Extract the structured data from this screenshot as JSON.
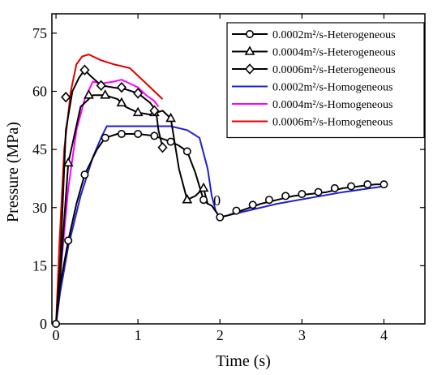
{
  "chart_data": {
    "type": "line",
    "title": "",
    "xlabel": "Time (s)",
    "ylabel": "Pressure (MPa)",
    "xlim": [
      -0.05,
      4.5
    ],
    "ylim": [
      0,
      80
    ],
    "xticks": [
      0,
      1,
      2,
      3,
      4
    ],
    "yticks": [
      0,
      15,
      30,
      45,
      60,
      75
    ],
    "grid": false,
    "legend_position": "top-right",
    "annotations": [
      {
        "text": "0",
        "x": 1.9,
        "y": 32
      }
    ],
    "series": [
      {
        "name": "0.0002m²/s-Heterogeneous",
        "color": "#000000",
        "marker": "circle",
        "x": [
          0,
          0.05,
          0.15,
          0.25,
          0.35,
          0.5,
          0.6,
          0.75,
          1.0,
          1.2,
          1.4,
          1.5,
          1.6,
          1.7,
          1.8,
          1.85,
          1.9,
          2.0,
          2.1,
          2.3,
          2.5,
          2.7,
          2.9,
          3.1,
          3.3,
          3.5,
          3.7,
          3.9,
          4.0
        ],
        "y": [
          0,
          10,
          21.5,
          31,
          38.5,
          45,
          48,
          49,
          49,
          48.5,
          47,
          46,
          44.5,
          39,
          32,
          31,
          30.5,
          27.5,
          28,
          29.5,
          31,
          32,
          33,
          33.5,
          34,
          35,
          35.5,
          36,
          36
        ],
        "marker_x": [
          0,
          0.15,
          0.35,
          0.6,
          0.8,
          1.0,
          1.2,
          1.4,
          1.6,
          1.8,
          2.0,
          2.2,
          2.4,
          2.6,
          2.8,
          3.0,
          3.2,
          3.4,
          3.6,
          3.8,
          4.0
        ],
        "marker_y": [
          0,
          21.5,
          38.5,
          48,
          49,
          49,
          48.5,
          47,
          44.5,
          32,
          27.5,
          29.2,
          30.7,
          32,
          33,
          33.5,
          34,
          35,
          35.5,
          36,
          36
        ]
      },
      {
        "name": "0.0004m²/s-Heterogeneous",
        "color": "#000000",
        "marker": "triangle",
        "x": [
          0,
          0.05,
          0.15,
          0.3,
          0.45,
          0.6,
          0.75,
          0.85,
          1.0,
          1.15,
          1.3,
          1.4,
          1.5,
          1.6,
          1.7,
          1.8,
          1.85
        ],
        "y": [
          0,
          12,
          41.5,
          56,
          59,
          59,
          58,
          56,
          54.5,
          54,
          55,
          53,
          40,
          32,
          33,
          35,
          31
        ],
        "marker_x": [
          0.15,
          0.4,
          0.6,
          0.8,
          1.0,
          1.2,
          1.4,
          1.6,
          1.8
        ],
        "marker_y": [
          41.5,
          59,
          59,
          57,
          54.5,
          54.5,
          53,
          32,
          35
        ]
      },
      {
        "name": "0.0006m²/s-Heterogeneous",
        "color": "#000000",
        "marker": "diamond",
        "x": [
          0,
          0.05,
          0.12,
          0.2,
          0.28,
          0.35,
          0.42,
          0.55,
          0.7,
          0.85,
          1.0,
          1.15,
          1.22,
          1.25,
          1.3
        ],
        "y": [
          0,
          15,
          50,
          60,
          63.5,
          65.5,
          64,
          61.5,
          61,
          60.5,
          59.5,
          57,
          55,
          50,
          45.5
        ],
        "marker_x": [
          0.12,
          0.35,
          0.55,
          0.8,
          1.0,
          1.2,
          1.3
        ],
        "marker_y": [
          58.5,
          65.5,
          61.5,
          61,
          59.5,
          55,
          45.5
        ]
      },
      {
        "name": "0.0002m²/s-Homogeneous",
        "color": "#1f1fd0",
        "marker": "none",
        "x": [
          0,
          0.05,
          0.15,
          0.3,
          0.45,
          0.55,
          0.62,
          0.8,
          1.0,
          1.2,
          1.4,
          1.6,
          1.75,
          1.85,
          1.9,
          1.95,
          2.0,
          2.3,
          2.7,
          3.1,
          3.5,
          4.0
        ],
        "y": [
          0,
          8,
          20,
          33,
          43,
          48,
          51,
          51,
          51,
          51,
          51,
          50,
          48,
          40,
          33,
          29,
          27.5,
          29,
          31,
          32.5,
          34,
          35.5
        ]
      },
      {
        "name": "0.0004m²/s-Homogeneous",
        "color": "#ff00ff",
        "marker": "none",
        "x": [
          0,
          0.05,
          0.15,
          0.25,
          0.35,
          0.45,
          0.55,
          0.7,
          0.8,
          0.9,
          1.0,
          1.1,
          1.2,
          1.25
        ],
        "y": [
          0,
          12,
          35,
          50,
          58,
          62.5,
          62,
          62.5,
          63,
          62,
          61,
          59,
          57.5,
          56
        ]
      },
      {
        "name": "0.0006m²/s-Homogeneous",
        "color": "#e00000",
        "marker": "none",
        "x": [
          0,
          0.04,
          0.1,
          0.18,
          0.25,
          0.32,
          0.4,
          0.45,
          0.55,
          0.7,
          0.9,
          1.0,
          1.1,
          1.2,
          1.3
        ],
        "y": [
          0,
          20,
          45,
          60,
          67,
          69,
          69.5,
          69,
          68,
          67,
          66,
          64,
          62,
          60,
          58
        ]
      }
    ]
  }
}
